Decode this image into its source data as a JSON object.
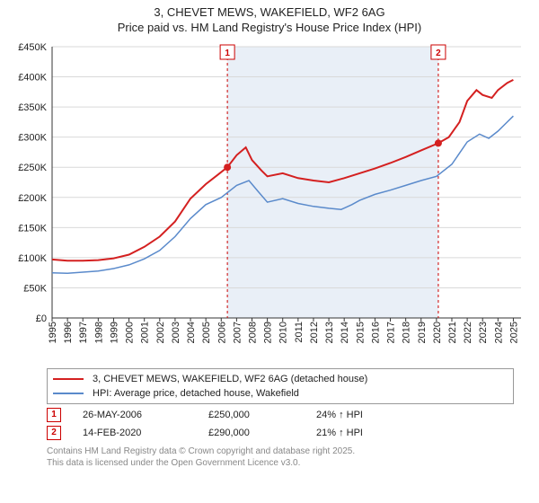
{
  "title_line1": "3, CHEVET MEWS, WAKEFIELD, WF2 6AG",
  "title_line2": "Price paid vs. HM Land Registry's House Price Index (HPI)",
  "chart": {
    "type": "line",
    "background_color": "#ffffff",
    "grid_color": "#d9d9d9",
    "axis_color": "#333333",
    "highlight_band_color": "#e9eff7",
    "highlight_band_start": 2006.4,
    "highlight_band_end": 2020.12,
    "ylim": [
      0,
      450000
    ],
    "ytick_step": 50000,
    "ytick_labels": [
      "£0",
      "£50K",
      "£100K",
      "£150K",
      "£200K",
      "£250K",
      "£300K",
      "£350K",
      "£400K",
      "£450K"
    ],
    "xlim": [
      1995,
      2025.5
    ],
    "xticks": [
      1995,
      1996,
      1997,
      1998,
      1999,
      2000,
      2001,
      2002,
      2003,
      2004,
      2005,
      2006,
      2007,
      2008,
      2009,
      2010,
      2011,
      2012,
      2013,
      2014,
      2015,
      2016,
      2017,
      2018,
      2019,
      2020,
      2021,
      2022,
      2023,
      2024,
      2025
    ],
    "axis_fontsize": 11,
    "series": [
      {
        "name": "price_paid",
        "color": "#d42020",
        "line_width": 2,
        "data": [
          [
            1995,
            97000
          ],
          [
            1996,
            95000
          ],
          [
            1997,
            95000
          ],
          [
            1998,
            96000
          ],
          [
            1999,
            99000
          ],
          [
            2000,
            105000
          ],
          [
            2001,
            118000
          ],
          [
            2002,
            135000
          ],
          [
            2003,
            160000
          ],
          [
            2004,
            198000
          ],
          [
            2005,
            222000
          ],
          [
            2005.8,
            238000
          ],
          [
            2006.4,
            250000
          ],
          [
            2007,
            270000
          ],
          [
            2007.6,
            283000
          ],
          [
            2008,
            262000
          ],
          [
            2008.6,
            245000
          ],
          [
            2009,
            235000
          ],
          [
            2010,
            240000
          ],
          [
            2011,
            232000
          ],
          [
            2012,
            228000
          ],
          [
            2013,
            225000
          ],
          [
            2014,
            232000
          ],
          [
            2015,
            240000
          ],
          [
            2016,
            248000
          ],
          [
            2017,
            257000
          ],
          [
            2018,
            267000
          ],
          [
            2019,
            278000
          ],
          [
            2020.12,
            290000
          ],
          [
            2020.8,
            300000
          ],
          [
            2021.5,
            325000
          ],
          [
            2022,
            360000
          ],
          [
            2022.6,
            378000
          ],
          [
            2023,
            370000
          ],
          [
            2023.6,
            365000
          ],
          [
            2024,
            378000
          ],
          [
            2024.6,
            390000
          ],
          [
            2025,
            395000
          ]
        ]
      },
      {
        "name": "hpi",
        "color": "#5a8acb",
        "line_width": 1.5,
        "data": [
          [
            1995,
            75000
          ],
          [
            1996,
            74000
          ],
          [
            1997,
            76000
          ],
          [
            1998,
            78000
          ],
          [
            1999,
            82000
          ],
          [
            2000,
            88000
          ],
          [
            2001,
            98000
          ],
          [
            2002,
            112000
          ],
          [
            2003,
            135000
          ],
          [
            2004,
            165000
          ],
          [
            2005,
            188000
          ],
          [
            2006,
            200000
          ],
          [
            2007,
            220000
          ],
          [
            2007.8,
            228000
          ],
          [
            2008.4,
            210000
          ],
          [
            2009,
            192000
          ],
          [
            2010,
            198000
          ],
          [
            2011,
            190000
          ],
          [
            2012,
            185000
          ],
          [
            2013,
            182000
          ],
          [
            2013.8,
            180000
          ],
          [
            2014.5,
            188000
          ],
          [
            2015,
            195000
          ],
          [
            2016,
            205000
          ],
          [
            2017,
            212000
          ],
          [
            2018,
            220000
          ],
          [
            2019,
            228000
          ],
          [
            2020,
            235000
          ],
          [
            2021,
            255000
          ],
          [
            2022,
            292000
          ],
          [
            2022.8,
            305000
          ],
          [
            2023.4,
            298000
          ],
          [
            2024,
            310000
          ],
          [
            2024.6,
            325000
          ],
          [
            2025,
            335000
          ]
        ]
      }
    ],
    "markers": [
      {
        "id": "1",
        "x": 2006.4,
        "y": 250000,
        "color": "#d42020",
        "vline_color": "#cc0000",
        "vline_dash": "3,3"
      },
      {
        "id": "2",
        "x": 2020.12,
        "y": 290000,
        "color": "#d42020",
        "vline_color": "#cc0000",
        "vline_dash": "3,3"
      }
    ]
  },
  "legend": {
    "series1_label": "3, CHEVET MEWS, WAKEFIELD, WF2 6AG (detached house)",
    "series2_label": "HPI: Average price, detached house, Wakefield"
  },
  "sales": [
    {
      "marker": "1",
      "date": "26-MAY-2006",
      "price": "£250,000",
      "delta": "24% ↑ HPI"
    },
    {
      "marker": "2",
      "date": "14-FEB-2020",
      "price": "£290,000",
      "delta": "21% ↑ HPI"
    }
  ],
  "footnote_line1": "Contains HM Land Registry data © Crown copyright and database right 2025.",
  "footnote_line2": "This data is licensed under the Open Government Licence v3.0."
}
